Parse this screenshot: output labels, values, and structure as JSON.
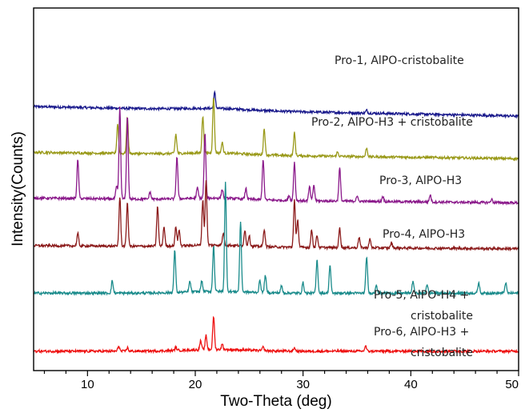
{
  "chart_data": {
    "type": "line",
    "xlabel": "Two-Theta (deg)",
    "ylabel": "Intensity(Counts)",
    "xlim": [
      5,
      50
    ],
    "x_ticks": [
      10,
      20,
      30,
      40,
      50
    ],
    "grid": false,
    "legend": "labels placed directly beside each trace",
    "series": [
      {
        "name": "Pro-1, AlPO-cristobalite",
        "color": "#1a1a8c",
        "baseline": 7.5,
        "slope": -0.006,
        "peaks": [
          [
            21.8,
            0.45
          ],
          [
            35.9,
            0.08
          ]
        ]
      },
      {
        "name": "Pro-2, AlPO-H3 + cristobalite",
        "color": "#9a9a1a",
        "baseline": 6.2,
        "slope": -0.004,
        "peaks": [
          [
            12.8,
            0.85
          ],
          [
            13.7,
            1.05
          ],
          [
            18.2,
            0.55
          ],
          [
            20.7,
            1.05
          ],
          [
            21.7,
            1.6
          ],
          [
            22.5,
            0.3
          ],
          [
            26.4,
            0.75
          ],
          [
            29.2,
            0.65
          ],
          [
            33.2,
            0.12
          ],
          [
            35.9,
            0.25
          ]
        ]
      },
      {
        "name": "Pro-3, AlPO-H3",
        "color": "#8b1a8b",
        "baseline": 4.9,
        "slope": -0.003,
        "peaks": [
          [
            9.1,
            1.1
          ],
          [
            12.7,
            0.35
          ],
          [
            13.0,
            2.6
          ],
          [
            13.7,
            2.35
          ],
          [
            15.8,
            0.2
          ],
          [
            18.3,
            1.2
          ],
          [
            20.2,
            0.3
          ],
          [
            20.9,
            1.85
          ],
          [
            22.5,
            0.25
          ],
          [
            24.7,
            0.3
          ],
          [
            26.3,
            1.15
          ],
          [
            28.7,
            0.15
          ],
          [
            29.2,
            1.1
          ],
          [
            30.6,
            0.4
          ],
          [
            31.0,
            0.45
          ],
          [
            33.4,
            0.95
          ],
          [
            35.0,
            0.15
          ],
          [
            37.4,
            0.15
          ],
          [
            41.8,
            0.2
          ],
          [
            47.5,
            0.1
          ]
        ]
      },
      {
        "name": "Pro-4, AlPO-H3",
        "color": "#8b1a1a",
        "baseline": 3.55,
        "slope": -0.002,
        "peaks": [
          [
            9.1,
            0.35
          ],
          [
            13.0,
            1.4
          ],
          [
            13.7,
            1.25
          ],
          [
            16.5,
            1.15
          ],
          [
            17.1,
            0.55
          ],
          [
            18.2,
            0.55
          ],
          [
            18.5,
            0.45
          ],
          [
            20.7,
            1.3
          ],
          [
            21.0,
            1.85
          ],
          [
            22.6,
            0.35
          ],
          [
            24.6,
            0.45
          ],
          [
            25.0,
            0.3
          ],
          [
            26.4,
            0.5
          ],
          [
            29.2,
            1.35
          ],
          [
            29.5,
            0.8
          ],
          [
            30.8,
            0.5
          ],
          [
            31.3,
            0.35
          ],
          [
            33.4,
            0.55
          ],
          [
            35.2,
            0.3
          ],
          [
            36.2,
            0.25
          ],
          [
            38.2,
            0.15
          ]
        ]
      },
      {
        "name": "Pro-5, AlPO-H4 + cristobalite",
        "color": "#1a8b8b",
        "baseline": 2.2,
        "slope": 0.0,
        "peaks": [
          [
            12.3,
            0.35
          ],
          [
            18.1,
            1.2
          ],
          [
            19.5,
            0.3
          ],
          [
            20.6,
            0.3
          ],
          [
            21.7,
            1.3
          ],
          [
            22.8,
            3.1
          ],
          [
            24.2,
            2.0
          ],
          [
            26.0,
            0.35
          ],
          [
            26.5,
            0.5
          ],
          [
            28.0,
            0.2
          ],
          [
            30.0,
            0.3
          ],
          [
            31.3,
            0.95
          ],
          [
            32.5,
            0.8
          ],
          [
            35.9,
            1.05
          ],
          [
            36.8,
            0.25
          ],
          [
            40.2,
            0.35
          ],
          [
            41.5,
            0.25
          ],
          [
            46.3,
            0.3
          ],
          [
            48.8,
            0.3
          ]
        ]
      },
      {
        "name": "Pro-6, AlPO-H3 + cristobalite",
        "color": "#ee1111",
        "baseline": 0.55,
        "slope": 0.0,
        "peaks": [
          [
            12.9,
            0.15
          ],
          [
            13.7,
            0.1
          ],
          [
            18.2,
            0.1
          ],
          [
            20.5,
            0.25
          ],
          [
            21.0,
            0.4
          ],
          [
            21.7,
            0.95
          ],
          [
            22.5,
            0.15
          ],
          [
            26.3,
            0.1
          ],
          [
            29.2,
            0.1
          ],
          [
            35.8,
            0.15
          ]
        ]
      }
    ]
  }
}
